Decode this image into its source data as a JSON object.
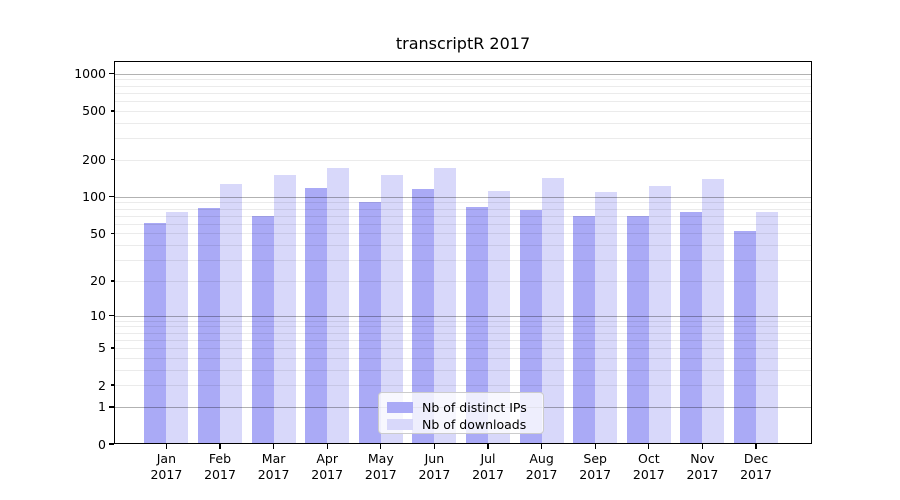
{
  "chart_data": {
    "type": "bar",
    "title": "transcriptR 2017",
    "categories": [
      "Jan",
      "Feb",
      "Mar",
      "Apr",
      "May",
      "Jun",
      "Jul",
      "Aug",
      "Sep",
      "Oct",
      "Nov",
      "Dec"
    ],
    "year": "2017",
    "series": [
      {
        "name": "Nb of distinct IPs",
        "color": "#aaaaf6",
        "values": [
          61,
          81,
          70,
          117,
          91,
          115,
          83,
          78,
          70,
          70,
          75,
          52
        ]
      },
      {
        "name": "Nb of downloads",
        "color": "#d8d8fa",
        "values": [
          75,
          128,
          150,
          173,
          150,
          173,
          111,
          143,
          110,
          123,
          140,
          75
        ]
      }
    ],
    "y_scale": "log1p",
    "y_ticks": [
      0,
      1,
      2,
      5,
      10,
      20,
      50,
      100,
      200,
      500,
      1000
    ],
    "y_major_grid_values": [
      1,
      10,
      100,
      1000
    ],
    "y_minor_grid_values": [
      2,
      3,
      4,
      5,
      6,
      7,
      8,
      9,
      20,
      30,
      40,
      50,
      60,
      70,
      80,
      90,
      200,
      300,
      400,
      500,
      600,
      700,
      800,
      900
    ],
    "ylim": [
      0,
      1270
    ],
    "xlabel": "",
    "ylabel": "",
    "grid": true,
    "legend_position": "lower center"
  },
  "colors": {
    "background": "#ffffff",
    "frame": "#000000",
    "major_grid": "rgba(0,0,0,0.30)",
    "minor_grid": "rgba(0,0,0,0.08)",
    "text": "#000000",
    "legend_border": "#cccccc",
    "legend_background": "rgba(255,255,255,0.8)"
  }
}
